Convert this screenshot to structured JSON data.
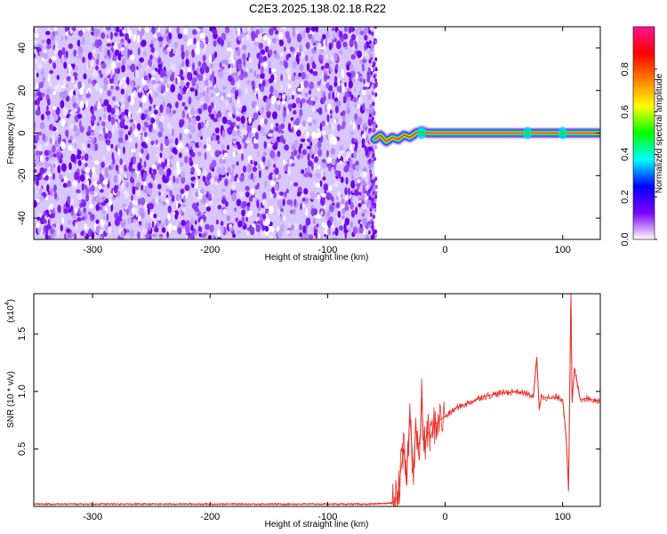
{
  "title": "C2E3.2025.138.02.18.R22",
  "colors": {
    "snr_line": "#e8312a",
    "axis": "#000000",
    "noise_dark": "#6a00e8",
    "noise_light": "#d8c6ff",
    "carrier_core": "#ff2a1a"
  },
  "colorbar": {
    "label": "Normalized spectral amplitude",
    "range": [
      0,
      1
    ],
    "ticks": [
      {
        "value": 0.0,
        "label": "0.0"
      },
      {
        "value": 0.2,
        "label": "0.2"
      },
      {
        "value": 0.4,
        "label": "0.4"
      },
      {
        "value": 0.6,
        "label": "0.6"
      },
      {
        "value": 0.8,
        "label": "0.8"
      }
    ],
    "stops": [
      "#ffffff",
      "#7a00ff",
      "#0000ff",
      "#00ffff",
      "#00ff00",
      "#ffff00",
      "#ff7f00",
      "#ff0000",
      "#ff1493"
    ]
  },
  "chart_data": [
    {
      "type": "heatmap",
      "xlabel": "Height of straight line (km)",
      "ylabel": "Frequency (Hz)",
      "xlim": [
        -350,
        132
      ],
      "ylim": [
        -50,
        50
      ],
      "xticks": [
        {
          "value": -300,
          "label": "-300"
        },
        {
          "value": -200,
          "label": "-200"
        },
        {
          "value": -100,
          "label": "-100"
        },
        {
          "value": 0,
          "label": "0"
        },
        {
          "value": 100,
          "label": "100"
        }
      ],
      "yticks": [
        {
          "value": -40,
          "label": "-40"
        },
        {
          "value": -20,
          "label": "-20"
        },
        {
          "value": 0,
          "label": "0"
        },
        {
          "value": 20,
          "label": "20"
        },
        {
          "value": 40,
          "label": "40"
        }
      ],
      "noise_region_x": [
        -350,
        -60
      ],
      "carrier_start_x": -60,
      "carrier_frequency_hz": 0,
      "carrier_path": [
        {
          "x": -60,
          "y": -3
        },
        {
          "x": -55,
          "y": -1
        },
        {
          "x": -50,
          "y": -4
        },
        {
          "x": -45,
          "y": -2
        },
        {
          "x": -40,
          "y": -3
        },
        {
          "x": -35,
          "y": -1
        },
        {
          "x": -30,
          "y": -2
        },
        {
          "x": -25,
          "y": 0
        },
        {
          "x": -20,
          "y": 1
        },
        {
          "x": -15,
          "y": 0
        },
        {
          "x": -5,
          "y": 0
        },
        {
          "x": 132,
          "y": 0
        }
      ]
    },
    {
      "type": "line",
      "xlabel": "Height of straight line (km)",
      "ylabel": "SNR (10 * v/v)",
      "yscale_label": "(x10",
      "yscale_exp": "4",
      "yscale_suffix": ")",
      "xlim": [
        -350,
        132
      ],
      "ylim": [
        0,
        1.85
      ],
      "xticks": [
        {
          "value": -300,
          "label": "-300"
        },
        {
          "value": -200,
          "label": "-200"
        },
        {
          "value": -100,
          "label": "-100"
        },
        {
          "value": 0,
          "label": "0"
        },
        {
          "value": 100,
          "label": "100"
        }
      ],
      "yticks": [
        {
          "value": 0.5,
          "label": "0.5"
        },
        {
          "value": 1.0,
          "label": "1.0"
        },
        {
          "value": 1.5,
          "label": "1.5"
        }
      ],
      "series": [
        {
          "x": [
            -350,
            -300,
            -250,
            -200,
            -150,
            -100,
            -60,
            -45,
            -40,
            -38,
            -35,
            -33,
            -30,
            -27,
            -25,
            -22,
            -20,
            -18,
            -15,
            -12,
            -10,
            -5,
            0,
            5,
            10,
            15,
            20,
            25,
            30,
            40,
            50,
            60,
            70,
            75,
            78,
            80,
            82,
            85,
            90,
            95,
            100,
            103,
            105,
            107,
            108,
            110,
            115,
            120,
            125,
            132
          ],
          "y": [
            0.02,
            0.02,
            0.02,
            0.02,
            0.02,
            0.02,
            0.02,
            0.03,
            0.08,
            0.3,
            0.5,
            0.2,
            0.8,
            0.3,
            0.7,
            0.4,
            0.95,
            0.5,
            0.65,
            0.6,
            0.7,
            0.75,
            0.78,
            0.82,
            0.86,
            0.88,
            0.9,
            0.92,
            0.95,
            0.97,
            0.99,
            1.0,
            0.98,
            0.95,
            1.3,
            0.85,
            0.96,
            0.95,
            0.94,
            0.95,
            0.93,
            0.6,
            0.15,
            1.85,
            0.9,
            1.2,
            0.93,
            0.94,
            0.93,
            0.92
          ]
        }
      ]
    }
  ]
}
